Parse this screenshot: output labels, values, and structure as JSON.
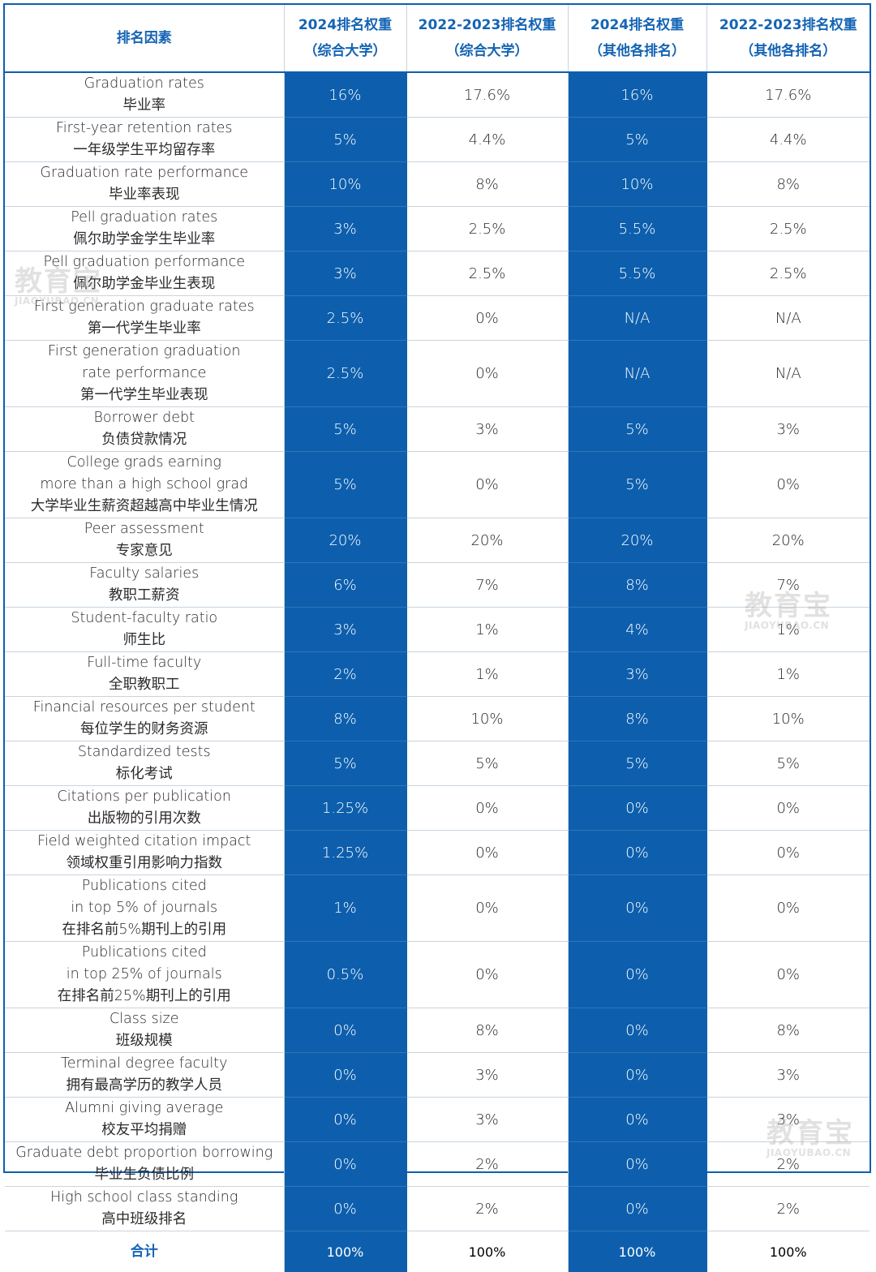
{
  "header": {
    "factor": "排名因素",
    "cols": [
      [
        "2024排名权重",
        "（综合大学）"
      ],
      [
        "2022-2023排名权重",
        "（综合大学）"
      ],
      [
        "2024排名权重",
        "（其他各排名）"
      ],
      [
        "2022-2023排名权重",
        "（其他各排名）"
      ]
    ]
  },
  "rows": [
    {
      "lines": [
        "Graduation rates",
        "毕业率"
      ],
      "v": [
        "16%",
        "17.6%",
        "16%",
        "17.6%"
      ]
    },
    {
      "lines": [
        "First-year retention rates",
        "一年级学生平均留存率"
      ],
      "v": [
        "5%",
        "4.4%",
        "5%",
        "4.4%"
      ]
    },
    {
      "lines": [
        "Graduation rate performance",
        "毕业率表现"
      ],
      "v": [
        "10%",
        "8%",
        "10%",
        "8%"
      ]
    },
    {
      "lines": [
        "Pell graduation rates",
        "佩尔助学金学生毕业率"
      ],
      "v": [
        "3%",
        "2.5%",
        "5.5%",
        "2.5%"
      ]
    },
    {
      "lines": [
        "Pell graduation performance",
        "佩尔助学金毕业生表现"
      ],
      "v": [
        "3%",
        "2.5%",
        "5.5%",
        "2.5%"
      ]
    },
    {
      "lines": [
        "First generation graduate rates",
        "第一代学生毕业率"
      ],
      "v": [
        "2.5%",
        "0%",
        "N/A",
        "N/A"
      ]
    },
    {
      "lines": [
        "First generation graduation",
        "rate performance",
        "第一代学生毕业表现"
      ],
      "v": [
        "2.5%",
        "0%",
        "N/A",
        "N/A"
      ]
    },
    {
      "lines": [
        "Borrower debt",
        "负债贷款情况"
      ],
      "v": [
        "5%",
        "3%",
        "5%",
        "3%"
      ]
    },
    {
      "lines": [
        "College grads earning",
        "more than a high school grad",
        "大学毕业生薪资超越高中毕业生情况"
      ],
      "v": [
        "5%",
        "0%",
        "5%",
        "0%"
      ]
    },
    {
      "lines": [
        "Peer assessment",
        "专家意见"
      ],
      "v": [
        "20%",
        "20%",
        "20%",
        "20%"
      ]
    },
    {
      "lines": [
        "Faculty salaries",
        "教职工薪资"
      ],
      "v": [
        "6%",
        "7%",
        "8%",
        "7%"
      ]
    },
    {
      "lines": [
        "Student-faculty ratio",
        "师生比"
      ],
      "v": [
        "3%",
        "1%",
        "4%",
        "1%"
      ]
    },
    {
      "lines": [
        "Full-time faculty",
        "全职教职工"
      ],
      "v": [
        "2%",
        "1%",
        "3%",
        "1%"
      ]
    },
    {
      "lines": [
        "Financial resources per student",
        "每位学生的财务资源"
      ],
      "v": [
        "8%",
        "10%",
        "8%",
        "10%"
      ]
    },
    {
      "lines": [
        "Standardized tests",
        "标化考试"
      ],
      "v": [
        "5%",
        "5%",
        "5%",
        "5%"
      ]
    },
    {
      "lines": [
        "Citations per publication",
        "出版物的引用次数"
      ],
      "v": [
        "1.25%",
        "0%",
        "0%",
        "0%"
      ]
    },
    {
      "lines": [
        "Field weighted citation impact",
        "领域权重引用影响力指数"
      ],
      "v": [
        "1.25%",
        "0%",
        "0%",
        "0%"
      ]
    },
    {
      "lines": [
        "Publications cited",
        "in top 5% of journals",
        "在排名前5%期刊上的引用"
      ],
      "v": [
        "1%",
        "0%",
        "0%",
        "0%"
      ]
    },
    {
      "lines": [
        "Publications cited",
        "in top 25% of journals",
        "在排名前25%期刊上的引用"
      ],
      "v": [
        "0.5%",
        "0%",
        "0%",
        "0%"
      ]
    },
    {
      "lines": [
        "Class size",
        "班级规模"
      ],
      "v": [
        "0%",
        "8%",
        "0%",
        "8%"
      ]
    },
    {
      "lines": [
        "Terminal degree faculty",
        "拥有最高学历的教学人员"
      ],
      "v": [
        "0%",
        "3%",
        "0%",
        "3%"
      ]
    },
    {
      "lines": [
        "Alumni giving average",
        "校友平均捐赠"
      ],
      "v": [
        "0%",
        "3%",
        "0%",
        "3%"
      ]
    },
    {
      "lines": [
        "Graduate debt proportion borrowing",
        "毕业生负债比例"
      ],
      "v": [
        "0%",
        "2%",
        "0%",
        "2%"
      ]
    },
    {
      "lines": [
        "High school class standing",
        "高中班级排名"
      ],
      "v": [
        "0%",
        "2%",
        "0%",
        "2%"
      ]
    }
  ],
  "total": {
    "label": "合计",
    "v": [
      "100%",
      "100%",
      "100%",
      "100%"
    ]
  },
  "watermark": {
    "cn": "教育宝",
    "en": "JIAOYUBAO.CN"
  },
  "colors": {
    "highlight_column": "#0d5fad",
    "header_text": "#1464b4",
    "border": "#0f5fae"
  }
}
